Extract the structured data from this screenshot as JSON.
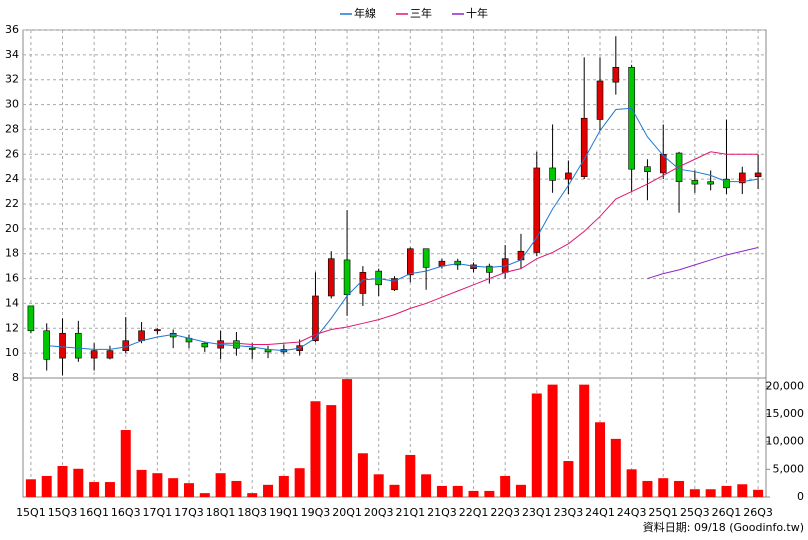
{
  "chart_data": [
    {
      "type": "candlestick",
      "categories": [
        "15Q1",
        null,
        "15Q3",
        null,
        "16Q1",
        null,
        "16Q3",
        null,
        "17Q1",
        null,
        "17Q3",
        null,
        "18Q1",
        null,
        "18Q3",
        null,
        "19Q1",
        null,
        "19Q3",
        null,
        "20Q1",
        null,
        "20Q3",
        null,
        "21Q1",
        null,
        "21Q3",
        null,
        "22Q1",
        null,
        "22Q3",
        null,
        "23Q1",
        null,
        "23Q3",
        null,
        "24Q1",
        null,
        "24Q3",
        null,
        "25Q1",
        null,
        "25Q3",
        null,
        "26Q1",
        null,
        "26Q3"
      ],
      "open": [
        13.8,
        11.8,
        9.6,
        11.6,
        9.6,
        9.6,
        10.2,
        11.0,
        11.8,
        11.6,
        11.2,
        10.8,
        10.4,
        11.0,
        10.4,
        10.3,
        10.3,
        10.2,
        11.0,
        14.6,
        17.5,
        14.8,
        16.6,
        15.1,
        16.3,
        18.4,
        17.0,
        17.4,
        16.8,
        17.0,
        16.5,
        17.5,
        18.1,
        24.9,
        24.0,
        24.2,
        28.8,
        31.8,
        33.0,
        25.0,
        24.5,
        26.1,
        23.9,
        23.8,
        24.0,
        23.7,
        24.2
      ],
      "high": [
        13.8,
        12.4,
        12.8,
        12.6,
        10.8,
        10.6,
        12.9,
        12.5,
        12.0,
        11.9,
        11.5,
        10.9,
        11.8,
        11.7,
        10.8,
        10.6,
        10.7,
        11.1,
        16.5,
        18.2,
        21.5,
        17.0,
        16.8,
        16.2,
        18.5,
        18.4,
        17.6,
        17.6,
        17.3,
        17.2,
        18.7,
        19.6,
        26.2,
        28.4,
        25.5,
        33.8,
        33.8,
        35.5,
        33.2,
        25.6,
        28.4,
        26.2,
        24.7,
        24.7,
        28.8,
        25.0,
        26.0
      ],
      "low": [
        11.6,
        8.6,
        8.2,
        9.3,
        8.6,
        9.5,
        10.0,
        10.8,
        11.5,
        10.4,
        10.4,
        10.1,
        9.5,
        9.8,
        9.5,
        9.6,
        9.9,
        9.8,
        10.9,
        14.4,
        13.0,
        13.8,
        14.6,
        15.0,
        15.7,
        15.1,
        16.8,
        16.7,
        16.5,
        15.6,
        16.0,
        16.8,
        17.8,
        22.9,
        22.8,
        24.0,
        27.9,
        30.8,
        23.0,
        22.3,
        24.0,
        21.3,
        22.9,
        23.1,
        22.8,
        22.8,
        23.2
      ],
      "close": [
        11.8,
        9.5,
        11.6,
        9.6,
        10.2,
        10.2,
        11.0,
        11.8,
        11.9,
        11.3,
        10.9,
        10.5,
        11.0,
        10.4,
        10.3,
        10.1,
        10.1,
        10.6,
        14.6,
        17.6,
        14.7,
        16.5,
        15.5,
        16.0,
        18.4,
        16.9,
        17.4,
        17.1,
        17.1,
        16.5,
        17.6,
        18.2,
        24.9,
        23.9,
        24.5,
        28.9,
        31.9,
        33.0,
        24.8,
        24.6,
        26.0,
        23.8,
        23.6,
        23.6,
        23.3,
        24.5,
        24.5
      ],
      "up_color": "#e00000",
      "down_color": "#00c800",
      "series": [
        {
          "name": "年線",
          "color": "#1e78d2",
          "values": [
            null,
            10.6,
            10.5,
            10.4,
            10.3,
            10.3,
            10.5,
            11.0,
            11.3,
            11.5,
            11.2,
            10.9,
            10.7,
            10.6,
            10.5,
            10.3,
            10.2,
            10.4,
            11.2,
            12.8,
            14.6,
            15.9,
            16.0,
            15.8,
            16.4,
            16.6,
            17.0,
            17.2,
            17.0,
            16.9,
            17.0,
            17.5,
            19.3,
            21.6,
            23.5,
            25.6,
            27.9,
            29.6,
            29.7,
            27.4,
            25.9,
            24.8,
            24.6,
            24.3,
            23.8,
            23.8,
            24.0
          ]
        },
        {
          "name": "三年",
          "color": "#e0186e",
          "values": [
            null,
            null,
            null,
            null,
            null,
            null,
            null,
            null,
            null,
            null,
            null,
            null,
            10.8,
            10.8,
            10.7,
            10.7,
            10.8,
            10.9,
            11.5,
            11.9,
            12.1,
            12.4,
            12.7,
            13.1,
            13.6,
            14.0,
            14.5,
            15.0,
            15.5,
            16.0,
            16.5,
            16.8,
            17.6,
            18.1,
            18.8,
            19.8,
            21.0,
            22.4,
            23.0,
            23.6,
            24.3,
            25.0,
            25.6,
            26.2,
            26.0,
            26.0,
            26.0
          ]
        },
        {
          "name": "十年",
          "color": "#8c28c8",
          "values": [
            null,
            null,
            null,
            null,
            null,
            null,
            null,
            null,
            null,
            null,
            null,
            null,
            null,
            null,
            null,
            null,
            null,
            null,
            null,
            null,
            null,
            null,
            null,
            null,
            null,
            null,
            null,
            null,
            null,
            null,
            null,
            null,
            null,
            null,
            null,
            null,
            null,
            null,
            null,
            16.0,
            16.4,
            16.7,
            17.1,
            17.5,
            17.9,
            18.2,
            18.5
          ]
        }
      ],
      "ylim": [
        8,
        36
      ],
      "yticks": [
        8,
        10,
        12,
        14,
        16,
        18,
        20,
        22,
        24,
        26,
        28,
        30,
        32,
        34,
        36
      ],
      "grid": true
    },
    {
      "type": "bar",
      "color": "#ff0000",
      "values": [
        3200,
        3800,
        5600,
        5100,
        2700,
        2700,
        12100,
        4900,
        4300,
        3400,
        2500,
        700,
        4300,
        2900,
        700,
        2200,
        3800,
        5200,
        17300,
        16600,
        21300,
        7900,
        4100,
        2200,
        7600,
        4100,
        2000,
        2000,
        1100,
        1100,
        3800,
        2200,
        18700,
        20300,
        6500,
        20300,
        13500,
        10500,
        5000,
        2900,
        3400,
        2900,
        1400,
        1400,
        2000,
        2300,
        1300
      ],
      "ylim": [
        0,
        21500
      ],
      "yticks": [
        0,
        {
          "value": 5000,
          "label": "5,000"
        },
        {
          "value": 10000,
          "label": "10,000"
        },
        {
          "value": 15000,
          "label": "15,000"
        },
        {
          "value": 20000,
          "label": "20,000"
        }
      ]
    }
  ],
  "footer": "資料日期: 09/18 (Goodinfo.tw)"
}
